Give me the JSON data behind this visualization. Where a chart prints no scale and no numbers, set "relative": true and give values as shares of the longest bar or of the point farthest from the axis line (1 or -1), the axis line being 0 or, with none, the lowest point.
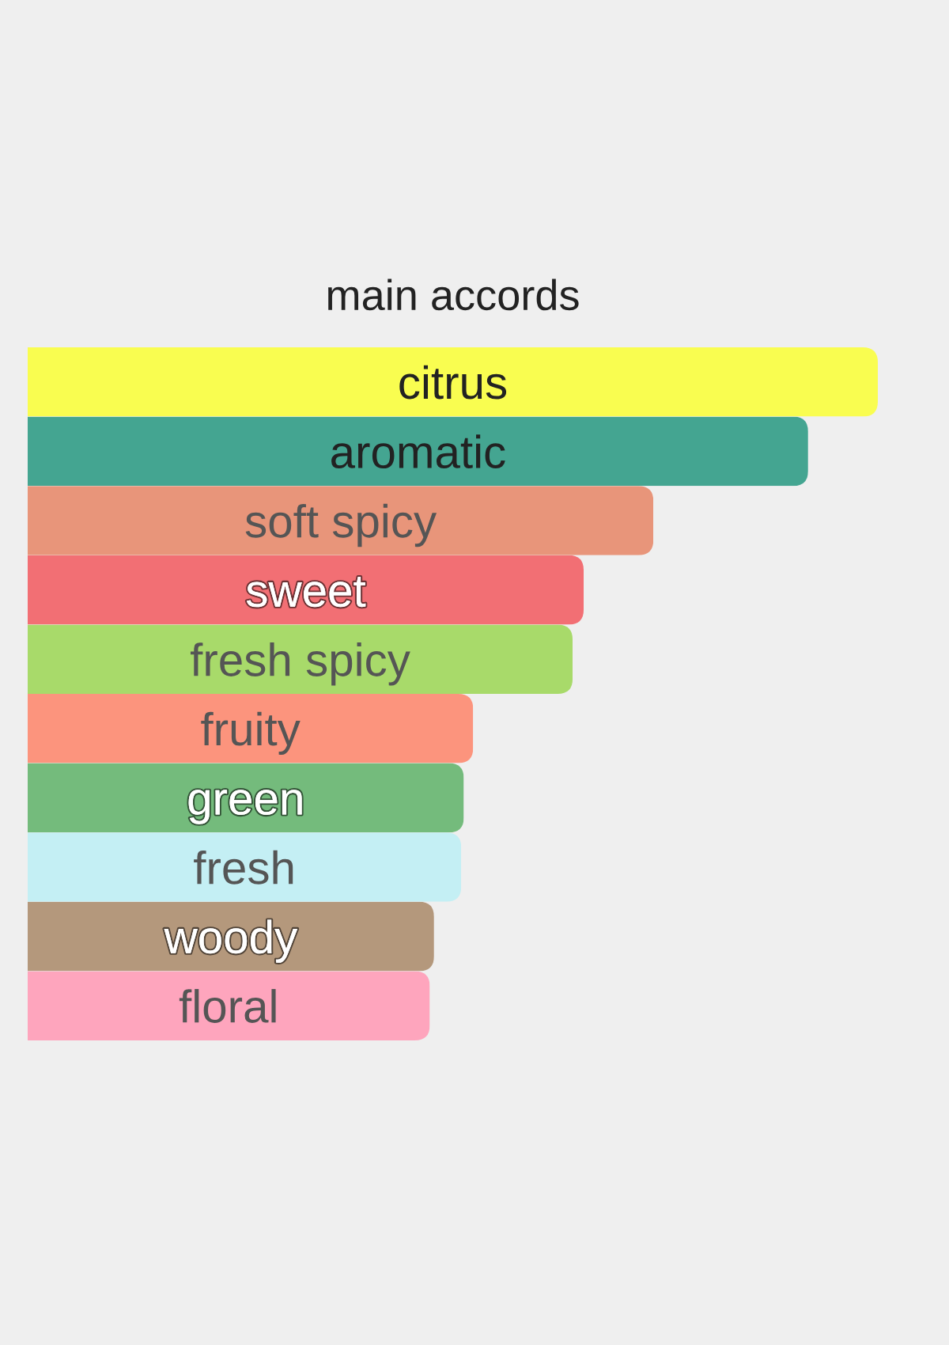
{
  "chart_data": {
    "type": "bar",
    "orientation": "horizontal",
    "relative": true,
    "title": "main accords",
    "categories": [
      "citrus",
      "aromatic",
      "soft spicy",
      "sweet",
      "fresh spicy",
      "fruity",
      "green",
      "fresh",
      "woody",
      "floral"
    ],
    "values": [
      1,
      0.918,
      0.736,
      0.654,
      0.641,
      0.524,
      0.513,
      0.51,
      0.478,
      0.473
    ],
    "colors": [
      "#f9fd50",
      "#44a591",
      "#e8957a",
      "#f26f74",
      "#a8da6a",
      "#fc947d",
      "#74bb7c",
      "#c4eff4",
      "#b4987c",
      "#fea5bd"
    ]
  }
}
